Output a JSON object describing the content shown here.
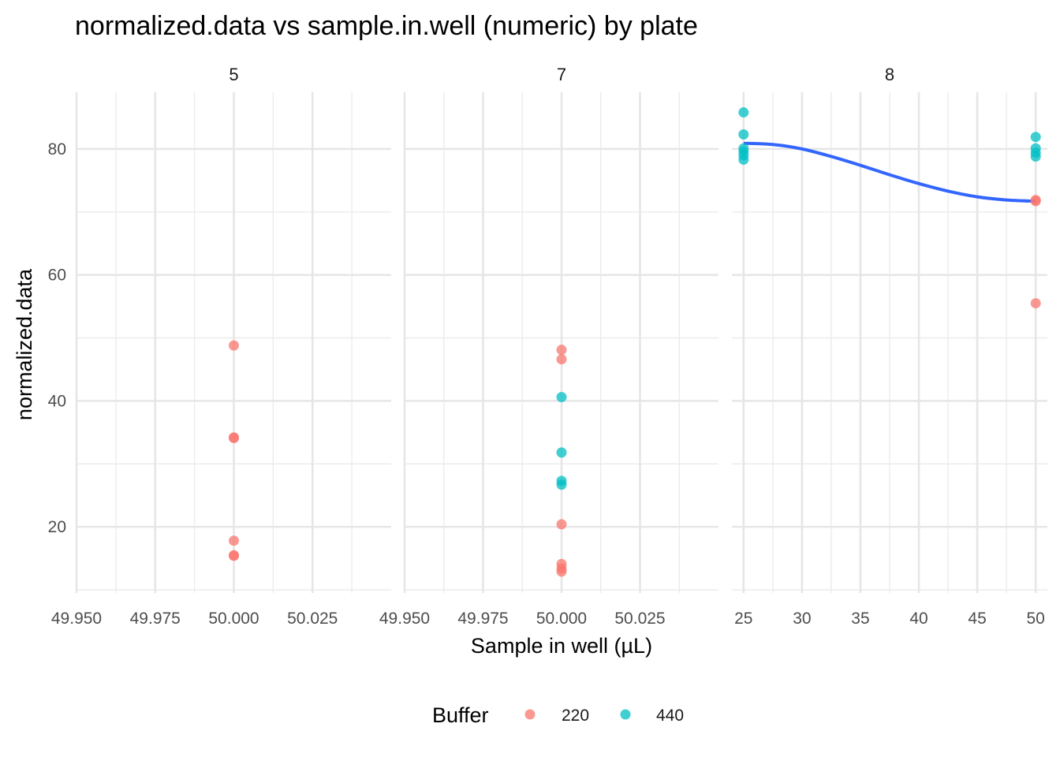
{
  "chart_data": {
    "type": "scatter",
    "title": "normalized.data vs sample.in.well (numeric) by plate",
    "xlabel": "Sample in well (µL)",
    "ylabel": "normalized.data",
    "ylim": [
      9.5,
      89
    ],
    "y_ticks": [
      20,
      40,
      60,
      80
    ],
    "y_tick_labels": [
      "20",
      "40",
      "60",
      "80"
    ],
    "grid": true,
    "legend": {
      "title": "Buffer",
      "position": "bottom",
      "entries": [
        {
          "label": "220",
          "color": "#F8766D"
        },
        {
          "label": "440",
          "color": "#00BFC4"
        }
      ]
    },
    "colors": {
      "220": "#F8766D",
      "440": "#00BFC4",
      "smooth": "#3366FF"
    },
    "panels": [
      {
        "strip": "5",
        "xlim": [
          49.95,
          50.05
        ],
        "x_ticks": [
          49.95,
          49.975,
          50.0,
          50.025
        ],
        "x_tick_labels": [
          "49.950",
          "49.975",
          "50.000",
          "50.025"
        ],
        "points": [
          {
            "x": 50,
            "y": 48.8,
            "buffer": "220"
          },
          {
            "x": 50,
            "y": 34.2,
            "buffer": "220"
          },
          {
            "x": 50,
            "y": 34.1,
            "buffer": "220"
          },
          {
            "x": 50,
            "y": 17.8,
            "buffer": "220"
          },
          {
            "x": 50,
            "y": 15.5,
            "buffer": "220"
          },
          {
            "x": 50,
            "y": 15.4,
            "buffer": "220"
          }
        ]
      },
      {
        "strip": "7",
        "xlim": [
          49.95,
          50.05
        ],
        "x_ticks": [
          49.95,
          49.975,
          50.0,
          50.025
        ],
        "x_tick_labels": [
          "49.950",
          "49.975",
          "50.000",
          "50.025"
        ],
        "points": [
          {
            "x": 50,
            "y": 48.1,
            "buffer": "220"
          },
          {
            "x": 50,
            "y": 46.6,
            "buffer": "220"
          },
          {
            "x": 50,
            "y": 40.6,
            "buffer": "440"
          },
          {
            "x": 50,
            "y": 31.8,
            "buffer": "440"
          },
          {
            "x": 50,
            "y": 27.3,
            "buffer": "440"
          },
          {
            "x": 50,
            "y": 26.7,
            "buffer": "440"
          },
          {
            "x": 50,
            "y": 20.4,
            "buffer": "220"
          },
          {
            "x": 50,
            "y": 14.1,
            "buffer": "220"
          },
          {
            "x": 50,
            "y": 13.4,
            "buffer": "220"
          },
          {
            "x": 50,
            "y": 12.9,
            "buffer": "220"
          }
        ]
      },
      {
        "strip": "8",
        "xlim": [
          24.0,
          51.0
        ],
        "x_ticks": [
          25,
          30,
          35,
          40,
          45,
          50
        ],
        "x_tick_labels": [
          "25",
          "30",
          "35",
          "40",
          "45",
          "50"
        ],
        "points": [
          {
            "x": 25,
            "y": 85.8,
            "buffer": "440"
          },
          {
            "x": 25,
            "y": 82.3,
            "buffer": "440"
          },
          {
            "x": 25,
            "y": 80.1,
            "buffer": "440"
          },
          {
            "x": 25,
            "y": 79.6,
            "buffer": "440"
          },
          {
            "x": 25,
            "y": 79.0,
            "buffer": "440"
          },
          {
            "x": 25,
            "y": 78.3,
            "buffer": "440"
          },
          {
            "x": 50,
            "y": 81.9,
            "buffer": "440"
          },
          {
            "x": 50,
            "y": 80.1,
            "buffer": "440"
          },
          {
            "x": 50,
            "y": 79.4,
            "buffer": "440"
          },
          {
            "x": 50,
            "y": 78.8,
            "buffer": "440"
          },
          {
            "x": 50,
            "y": 71.9,
            "buffer": "220"
          },
          {
            "x": 50,
            "y": 71.7,
            "buffer": "220"
          },
          {
            "x": 50,
            "y": 55.5,
            "buffer": "220"
          }
        ],
        "smooth": {
          "x": [
            25,
            27.5,
            30,
            32.5,
            35,
            37.5,
            40,
            42.5,
            45,
            47.5,
            50
          ],
          "y": [
            80.9,
            80.7,
            80.0,
            78.8,
            77.4,
            75.9,
            74.5,
            73.3,
            72.4,
            71.9,
            71.7
          ]
        }
      }
    ]
  }
}
